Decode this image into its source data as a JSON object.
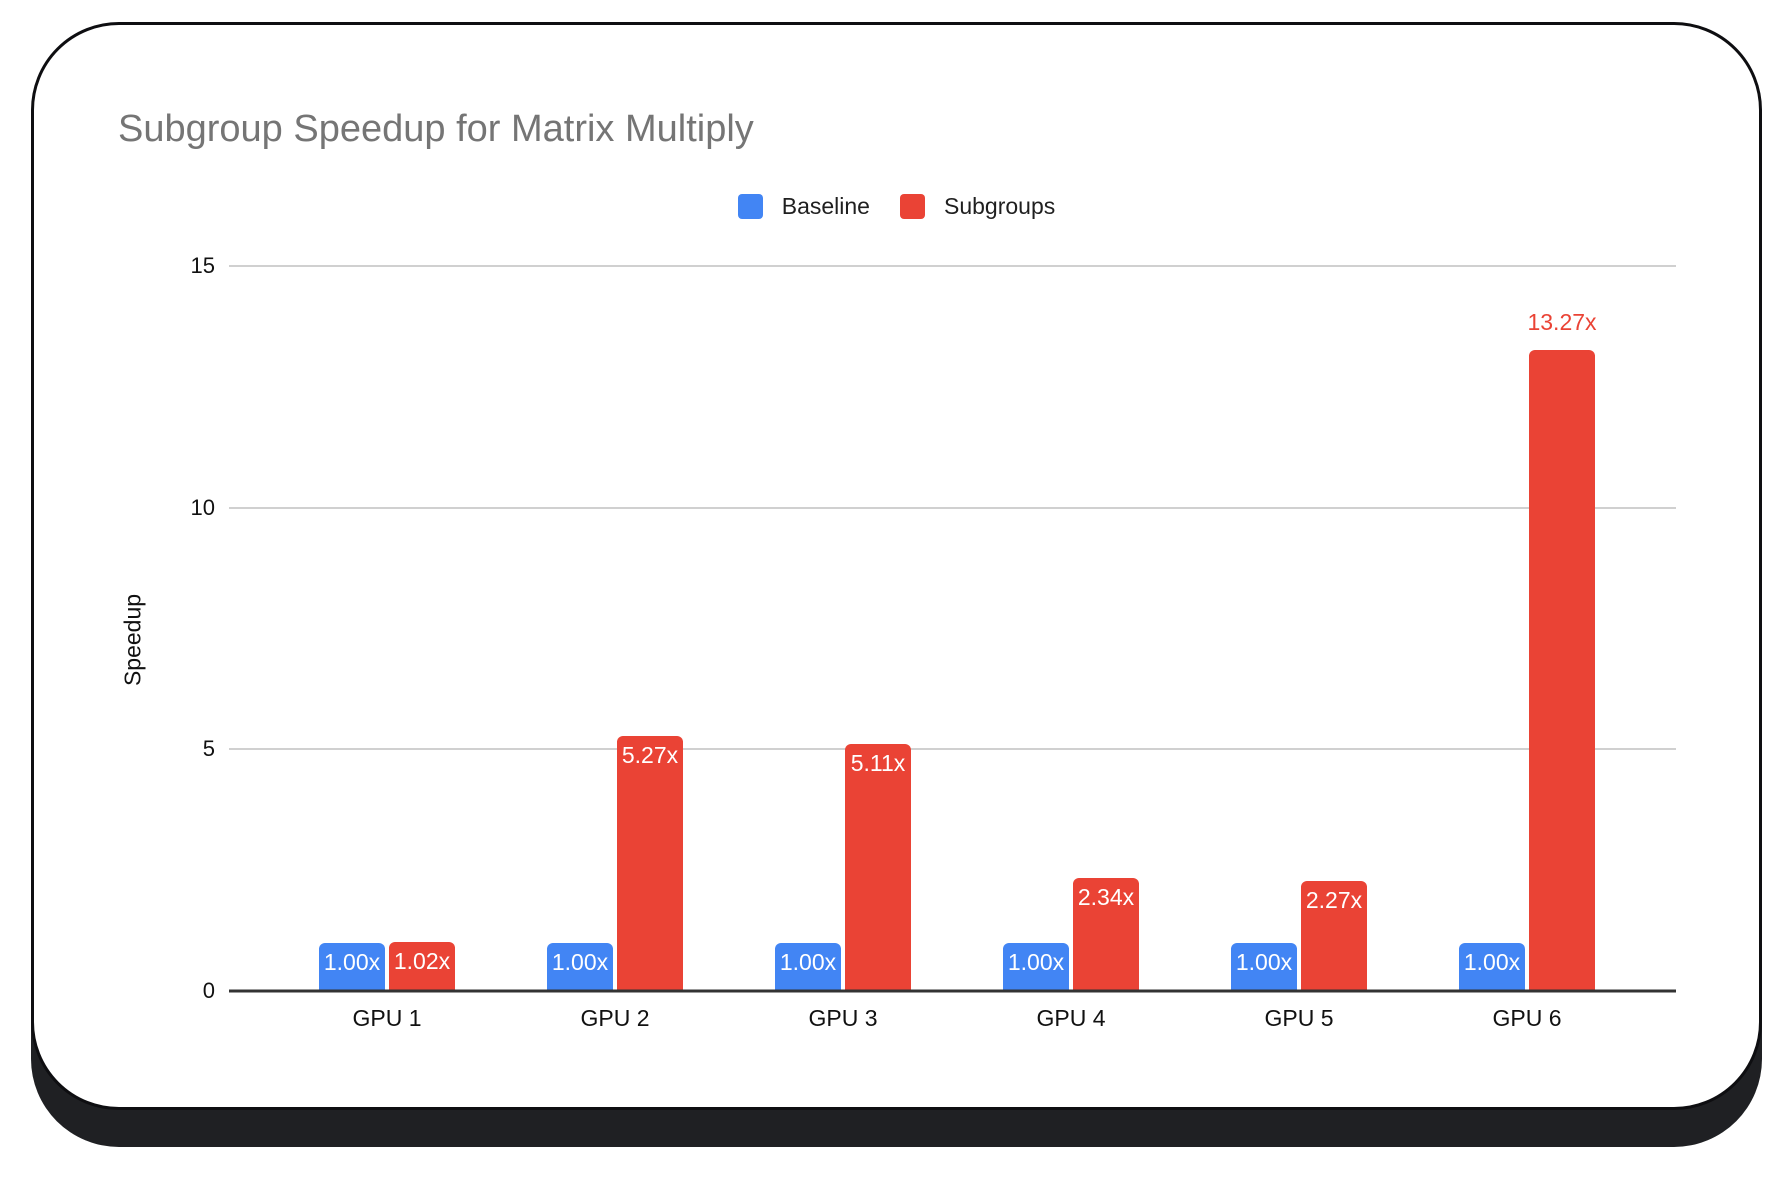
{
  "chart_data": {
    "type": "bar",
    "title": "Subgroup Speedup for Matrix Multiply",
    "xlabel": "",
    "ylabel": "Speedup",
    "categories": [
      "GPU 1",
      "GPU 2",
      "GPU 3",
      "GPU 4",
      "GPU 5",
      "GPU 6"
    ],
    "series": [
      {
        "name": "Baseline",
        "color": "#4285f4",
        "values": [
          1.0,
          1.0,
          1.0,
          1.0,
          1.0,
          1.0
        ],
        "data_labels": [
          "1.00x",
          "1.00x",
          "1.00x",
          "1.00x",
          "1.00x",
          "1.00x"
        ],
        "label_placement": [
          "inside",
          "inside",
          "inside",
          "inside",
          "inside",
          "inside"
        ]
      },
      {
        "name": "Subgroups",
        "color": "#ea4335",
        "values": [
          1.02,
          5.27,
          5.11,
          2.34,
          2.27,
          13.27
        ],
        "data_labels": [
          "1.02x",
          "5.27x",
          "5.11x",
          "2.34x",
          "2.27x",
          "13.27x"
        ],
        "label_placement": [
          "inside",
          "inside",
          "inside",
          "inside",
          "inside",
          "above"
        ]
      }
    ],
    "ylim": [
      0,
      15
    ],
    "yticks": [
      0,
      5,
      10,
      15
    ],
    "legend_position": "top",
    "grid": true
  },
  "colors": {
    "background": "#ffffff",
    "card_border": "#0e0e11",
    "card_shadow": "#1f2023",
    "title": "#757575",
    "grid": "#d0d0d0",
    "axis": "#333333",
    "bar_label_inside": "#ffffff"
  }
}
